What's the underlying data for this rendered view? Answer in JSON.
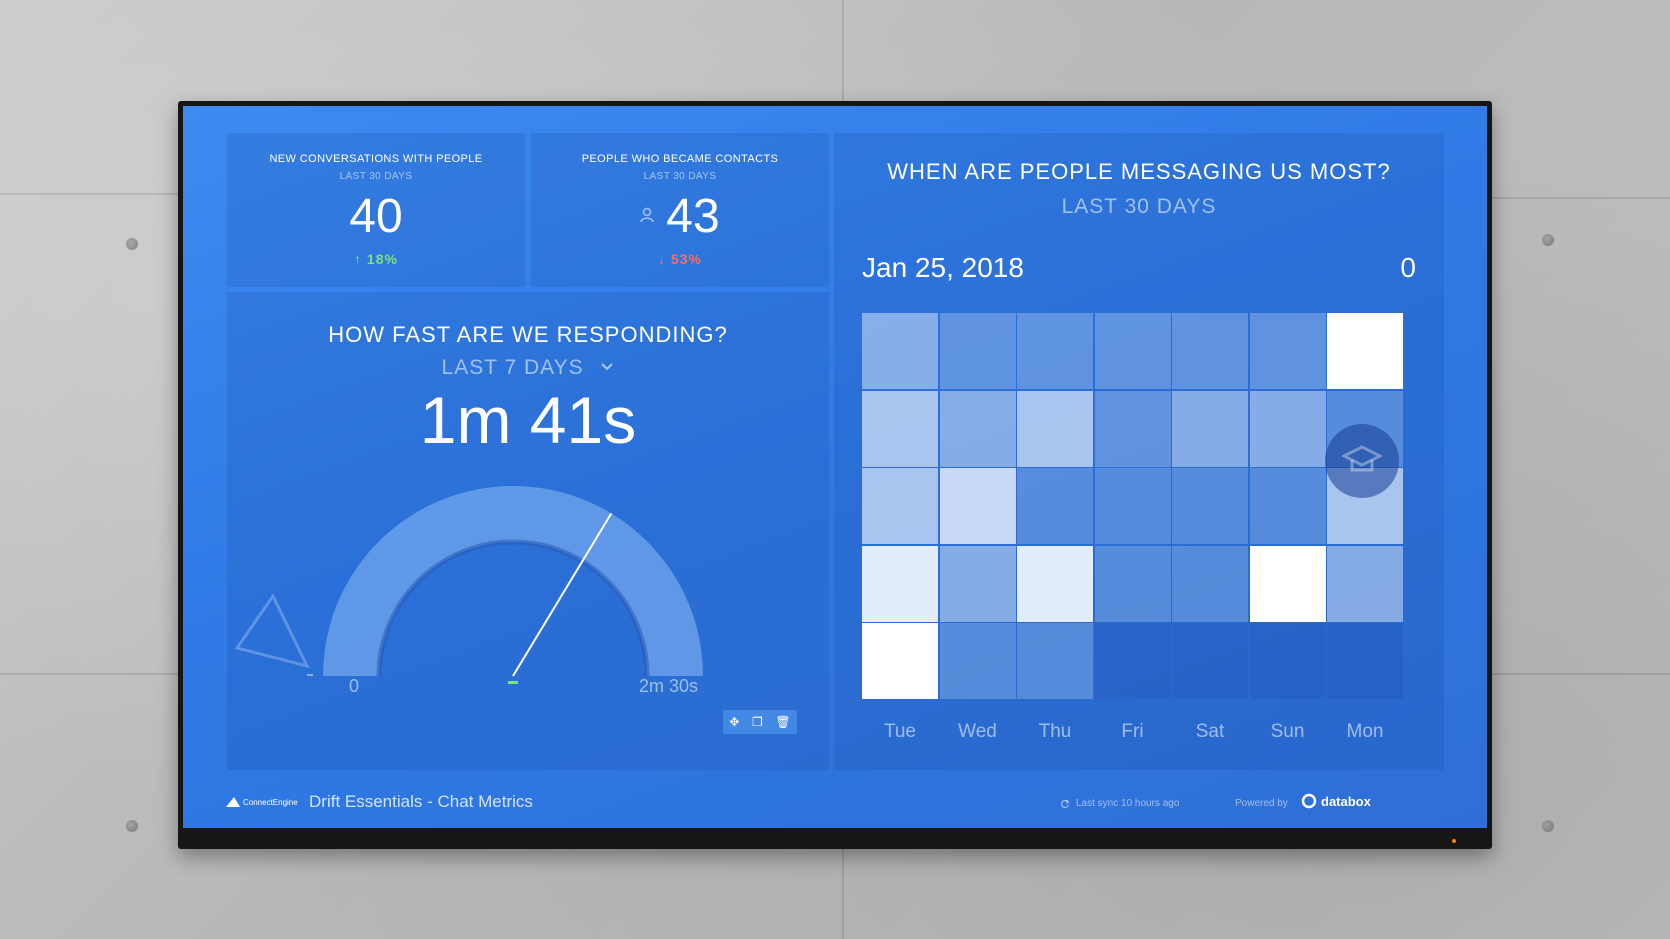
{
  "dashboard": {
    "name": "Drift Essentials - Chat Metrics",
    "brand": "ConnectEngine",
    "last_sync": "Last sync 10 hours ago",
    "powered_by": "Powered by",
    "powered_brand": "databox"
  },
  "kpis": {
    "conversations": {
      "title": "NEW CONVERSATIONS WITH PEOPLE",
      "subtitle": "LAST 30 DAYS",
      "value": "40",
      "change": "↑ 18%",
      "trend": "up"
    },
    "contacts": {
      "title": "PEOPLE WHO BECAME CONTACTS",
      "subtitle": "LAST 30 DAYS",
      "value": "43",
      "change": "↓ 53%",
      "trend": "down"
    }
  },
  "response": {
    "title": "HOW FAST ARE WE RESPONDING?",
    "range": "LAST 7 DAYS",
    "value": "1m 41s",
    "gauge_min_label": "0",
    "gauge_max_label": "2m 30s",
    "gauge_level": 0.673
  },
  "heatmap": {
    "title": "WHEN ARE PEOPLE MESSAGING US MOST?",
    "range": "LAST 30 DAYS",
    "selected_date": "Jan 25, 2018",
    "selected_value": "0",
    "days": [
      "Tue",
      "Wed",
      "Thu",
      "Fri",
      "Sat",
      "Sun",
      "Mon"
    ],
    "intensity": [
      [
        0.35,
        0.15,
        0.15,
        0.15,
        0.15,
        0.15,
        1.0
      ],
      [
        0.55,
        0.35,
        0.55,
        0.15,
        0.35,
        0.35,
        0.1
      ],
      [
        0.55,
        0.7,
        0.1,
        0.1,
        0.1,
        0.1,
        0.55
      ],
      [
        0.85,
        0.35,
        0.85,
        0.1,
        0.1,
        1.0,
        0.35
      ],
      [
        1.0,
        0.1,
        0.1,
        null,
        null,
        null,
        null
      ]
    ]
  },
  "colors": {
    "positive": "#7ce37a",
    "negative": "#ff6a5a",
    "screen_bg": "#3480ea"
  },
  "icons": {
    "contacts": "person-icon",
    "widget_move": "move-icon",
    "widget_copy": "copy-icon",
    "widget_delete": "trash-icon",
    "sync": "refresh-icon",
    "help": "graduation-cap-icon"
  }
}
